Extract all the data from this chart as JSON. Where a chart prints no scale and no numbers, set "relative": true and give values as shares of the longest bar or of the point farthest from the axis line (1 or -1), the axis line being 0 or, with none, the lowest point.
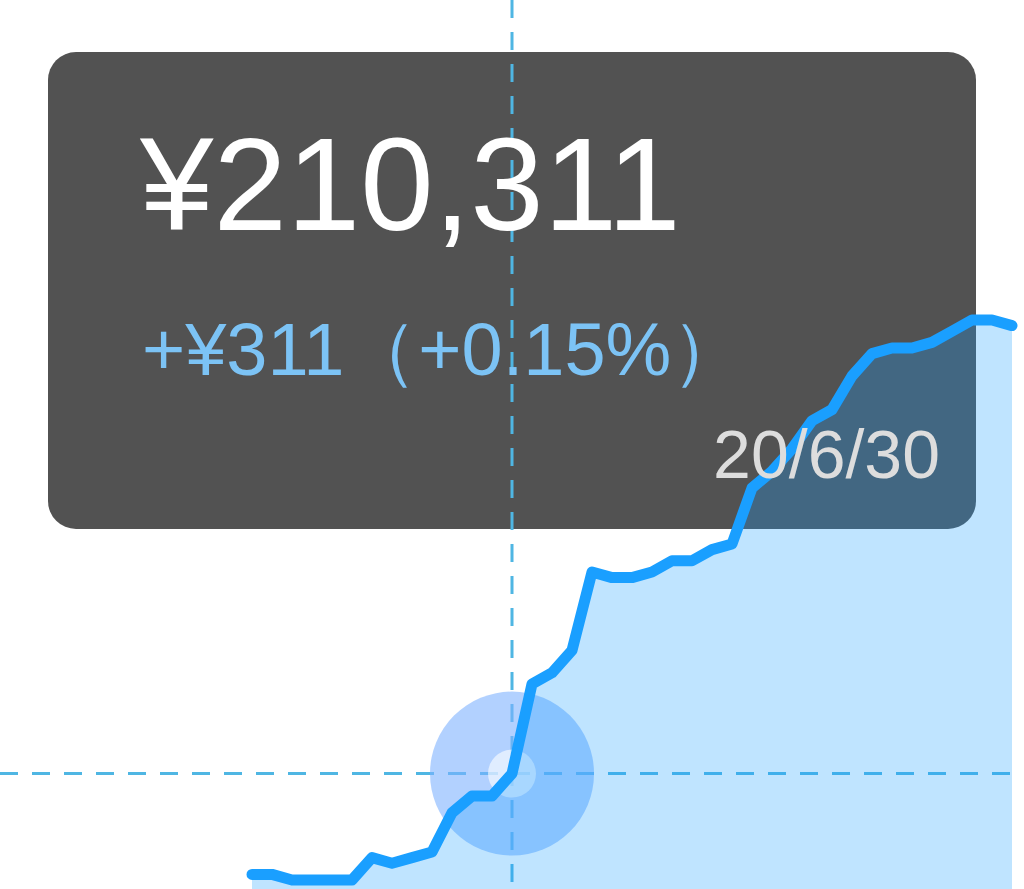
{
  "chart_data": {
    "type": "area",
    "relative": true,
    "grid": false,
    "categories": [
      null,
      null,
      null,
      null,
      null,
      null,
      null,
      null,
      null,
      null,
      null,
      null,
      null,
      null,
      null,
      null,
      null,
      null,
      null,
      null,
      null,
      null,
      null,
      null,
      null,
      null,
      null,
      null,
      null,
      null,
      null,
      null,
      null,
      null,
      null,
      null,
      null,
      null,
      null
    ],
    "series": [
      {
        "type": "area",
        "color": "#1a9fff",
        "values": [
          0.01,
          0.01,
          0,
          0,
          0,
          0,
          0.04,
          0.03,
          0.04,
          0.05,
          0.12,
          0.15,
          0.15,
          0.19,
          0.35,
          0.37,
          0.41,
          0.55,
          0.54,
          0.54,
          0.55,
          0.57,
          0.57,
          0.59,
          0.6,
          0.7,
          0.73,
          0.77,
          0.82,
          0.84,
          0.9,
          0.94,
          0.95,
          0.95,
          0.96,
          0.98,
          1,
          1,
          0.99
        ]
      }
    ],
    "ref_lines": [
      {
        "axis": "y",
        "value": 0.19,
        "line_style": "dashed",
        "color": "#4fb6e3"
      }
    ],
    "annotations": [
      "¥210,311",
      "+¥311（+0.15%）",
      "20/6/30"
    ]
  }
}
